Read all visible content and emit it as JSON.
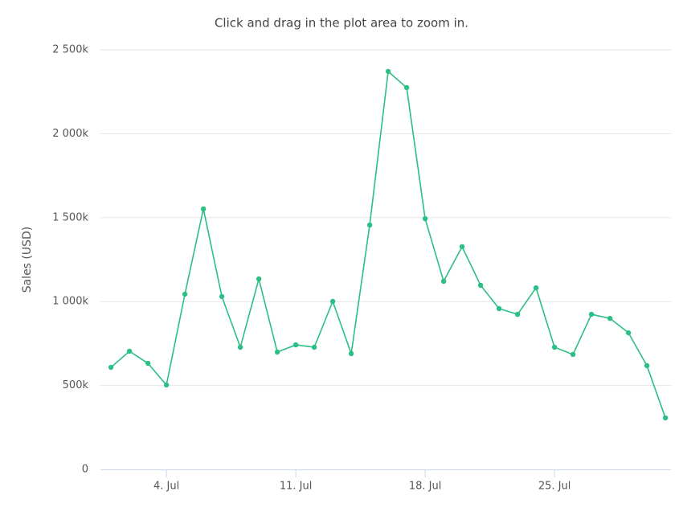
{
  "chart_data": {
    "type": "line",
    "subtitle": "Click and drag in the plot area to zoom in.",
    "y_label": "Sales (USD)",
    "x": [
      1,
      2,
      3,
      4,
      5,
      6,
      7,
      8,
      9,
      10,
      11,
      12,
      13,
      14,
      15,
      16,
      17,
      18,
      19,
      20,
      21,
      22,
      23,
      24,
      25,
      26,
      27,
      28,
      29,
      30,
      31
    ],
    "series": [
      {
        "name": "Sales",
        "color": "#2cbf85",
        "values": [
          608000,
          704000,
          632000,
          503000,
          1044000,
          1552000,
          1030000,
          728000,
          1135000,
          699000,
          742000,
          728000,
          1001000,
          690000,
          1456000,
          2371000,
          2275000,
          1494000,
          1121000,
          1327000,
          1097000,
          958000,
          924000,
          1082000,
          728000,
          685000,
          924000,
          900000,
          814000,
          618000,
          307000
        ]
      }
    ],
    "xlim": [
      0.43,
      31.3
    ],
    "xticks": [
      {
        "value": 4,
        "label": "4. Jul"
      },
      {
        "value": 11,
        "label": "11. Jul"
      },
      {
        "value": 18,
        "label": "18. Jul"
      },
      {
        "value": 25,
        "label": "25. Jul"
      }
    ],
    "ylim": [
      0,
      2500000
    ],
    "yticks": [
      0,
      {
        "value": 500000,
        "label": "500k"
      },
      {
        "value": 1000000,
        "label": "1 000k"
      },
      {
        "value": 1500000,
        "label": "1 500k"
      },
      {
        "value": 2000000,
        "label": "2 000k"
      },
      {
        "value": 2500000,
        "label": "2 500k"
      }
    ],
    "grid": true
  }
}
